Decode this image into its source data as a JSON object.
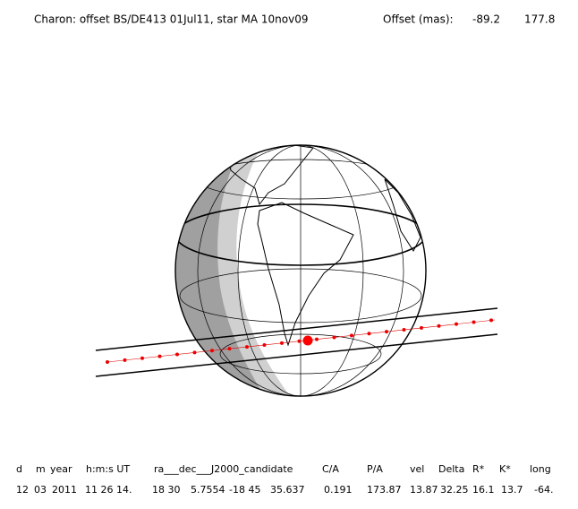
{
  "header": {
    "title": "Charon: offset BS/DE413 01Jul11, star MA 10nov09",
    "offset_label": "Offset (mas):",
    "offset_values": [
      "-89.2",
      "177.8"
    ]
  },
  "table": {
    "columns": [
      "d",
      "m",
      "year",
      "h:m:s UT",
      "ra___dec___J2000_candidate",
      "C/A",
      "P/A",
      "vel",
      "Delta",
      "R*",
      "K*",
      "long"
    ],
    "row": [
      "12",
      "03",
      "2011",
      "11 26 14.",
      "18 30",
      "5.7554",
      "-18 45",
      "35.637",
      "0.191",
      "173.87",
      "13.87",
      "32.25",
      "16.1",
      "13.7",
      "-64."
    ]
  }
}
